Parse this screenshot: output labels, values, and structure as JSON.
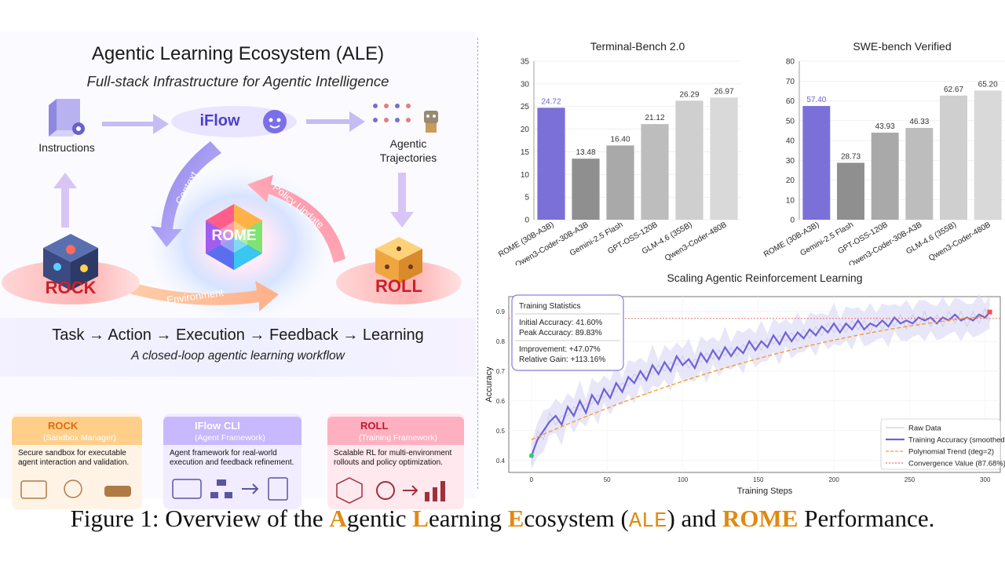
{
  "left": {
    "title": "Agentic Learning Ecosystem (ALE)",
    "subtitle": "Full-stack Infrastructure for Agentic Intelligence",
    "nodes": {
      "instructions": "Instructions",
      "iflow": "iFlow",
      "trajectories_l1": "Agentic",
      "trajectories_l2": "Trajectories",
      "rome": "ROME",
      "rock": "ROCK",
      "roll": "ROLL"
    },
    "arrows": {
      "context": "Context",
      "policy_update": "Policy Update",
      "environment": "Environment"
    },
    "loop": "Task → Action → Execution → Feedback → Learning",
    "loop_sub": "A closed-loop agentic learning workflow",
    "cards": [
      {
        "title": "ROCK",
        "role": "(Sandbox Manager)",
        "desc_l1": "Secure sandbox for executable",
        "desc_l2": "agent interaction and validation."
      },
      {
        "title": "IFlow CLI",
        "role": "(Agent Framework)",
        "desc_l1": "Agent framework for real-world",
        "desc_l2": "execution and feedback refinement."
      },
      {
        "title": "ROLL",
        "role": "(Training Framework)",
        "desc_l1": "Scalable RL for multi-environment",
        "desc_l2": "rollouts and policy optimization."
      }
    ]
  },
  "chart_data": [
    {
      "type": "bar",
      "title": "Terminal-Bench 2.0",
      "categories": [
        "ROME (30B-A3B)",
        "Qwen3-Coder-30B-A3B",
        "Gemini-2.5 Flash",
        "GPT-OSS-120B",
        "GLM-4.6 (355B)",
        "Qwen3-Coder-480B"
      ],
      "values": [
        24.72,
        13.48,
        16.4,
        21.12,
        26.29,
        26.97
      ],
      "value_labels": [
        "24.72",
        "13.48",
        "16.40",
        "21.12",
        "26.29",
        "26.97"
      ],
      "yticks": [
        "0",
        "5",
        "10",
        "15",
        "20",
        "25",
        "30",
        "35"
      ],
      "ylim": [
        0,
        35
      ],
      "colors": [
        "#7b6fd8",
        "#8f8f8f",
        "#a9a9a9",
        "#bdbdbd",
        "#cfcfcf",
        "#d9d9d9"
      ]
    },
    {
      "type": "bar",
      "title": "SWE-bench Verified",
      "categories": [
        "ROME (30B-A3B)",
        "Gemini-2.5 Flash",
        "GPT-OSS-120B",
        "Qwen3-Coder-30B-A3B",
        "GLM-4.6 (355B)",
        "Qwen3-Coder-480B"
      ],
      "values": [
        57.4,
        28.73,
        43.93,
        46.33,
        62.67,
        65.2
      ],
      "value_labels": [
        "57.40",
        "28.73",
        "43.93",
        "46.33",
        "62.67",
        "65.20"
      ],
      "yticks": [
        "0",
        "10",
        "20",
        "30",
        "40",
        "50",
        "60",
        "70",
        "80"
      ],
      "ylim": [
        0,
        80
      ],
      "colors": [
        "#7b6fd8",
        "#8f8f8f",
        "#a9a9a9",
        "#bdbdbd",
        "#cfcfcf",
        "#d9d9d9"
      ]
    },
    {
      "type": "line",
      "title": "Scaling Agentic Reinforcement Learning",
      "xlabel": "Training Steps",
      "ylabel": "Accuracy",
      "xlim": [
        -15,
        310
      ],
      "ylim": [
        0.36,
        0.95
      ],
      "xticks": [
        "0",
        "50",
        "100",
        "150",
        "200",
        "250",
        "300"
      ],
      "yticks": [
        "0.4",
        "0.5",
        "0.6",
        "0.7",
        "0.8",
        "0.9"
      ],
      "convergence": 0.8768,
      "start_point": {
        "x": 0,
        "y": 0.416
      },
      "end_point": {
        "x": 303,
        "y": 0.8983
      },
      "key_points": [
        [
          0,
          0.416
        ],
        [
          4,
          0.47
        ],
        [
          8,
          0.5
        ],
        [
          12,
          0.53
        ],
        [
          16,
          0.55
        ],
        [
          20,
          0.52
        ],
        [
          24,
          0.58
        ],
        [
          28,
          0.55
        ],
        [
          32,
          0.6
        ],
        [
          36,
          0.56
        ],
        [
          40,
          0.62
        ],
        [
          44,
          0.59
        ],
        [
          48,
          0.64
        ],
        [
          52,
          0.61
        ],
        [
          56,
          0.66
        ],
        [
          60,
          0.63
        ],
        [
          64,
          0.68
        ],
        [
          68,
          0.66
        ],
        [
          72,
          0.7
        ],
        [
          76,
          0.67
        ],
        [
          80,
          0.72
        ],
        [
          84,
          0.69
        ],
        [
          88,
          0.73
        ],
        [
          92,
          0.7
        ],
        [
          96,
          0.75
        ],
        [
          100,
          0.72
        ],
        [
          104,
          0.74
        ],
        [
          108,
          0.71
        ],
        [
          112,
          0.76
        ],
        [
          116,
          0.73
        ],
        [
          120,
          0.77
        ],
        [
          124,
          0.74
        ],
        [
          128,
          0.78
        ],
        [
          132,
          0.75
        ],
        [
          136,
          0.78
        ],
        [
          140,
          0.76
        ],
        [
          144,
          0.8
        ],
        [
          148,
          0.77
        ],
        [
          152,
          0.8
        ],
        [
          156,
          0.78
        ],
        [
          160,
          0.82
        ],
        [
          164,
          0.79
        ],
        [
          168,
          0.83
        ],
        [
          172,
          0.8
        ],
        [
          176,
          0.83
        ],
        [
          180,
          0.81
        ],
        [
          184,
          0.84
        ],
        [
          188,
          0.82
        ],
        [
          192,
          0.85
        ],
        [
          196,
          0.83
        ],
        [
          200,
          0.86
        ],
        [
          204,
          0.83
        ],
        [
          208,
          0.86
        ],
        [
          212,
          0.84
        ],
        [
          216,
          0.87
        ],
        [
          220,
          0.84
        ],
        [
          224,
          0.86
        ],
        [
          228,
          0.85
        ],
        [
          232,
          0.87
        ],
        [
          236,
          0.85
        ],
        [
          240,
          0.88
        ],
        [
          244,
          0.86
        ],
        [
          248,
          0.87
        ],
        [
          252,
          0.86
        ],
        [
          256,
          0.88
        ],
        [
          260,
          0.87
        ],
        [
          264,
          0.88
        ],
        [
          268,
          0.86
        ],
        [
          272,
          0.88
        ],
        [
          276,
          0.87
        ],
        [
          280,
          0.89
        ],
        [
          284,
          0.87
        ],
        [
          288,
          0.88
        ],
        [
          292,
          0.87
        ],
        [
          296,
          0.89
        ],
        [
          300,
          0.88
        ],
        [
          303,
          0.8983
        ]
      ],
      "trend": {
        "a": 0.47,
        "b": 0.00225,
        "c": -2.9e-06
      },
      "stats": {
        "title": "Training Statistics",
        "l1": "Initial Accuracy: 41.60%",
        "l2": "Peak Accuracy:   89.83%",
        "l3": "Improvement: +47.07%",
        "l4": "Relative Gain: +113.16%"
      },
      "legend": [
        {
          "label": "Raw Data",
          "color": "#c9c6ef"
        },
        {
          "label": "Training Accuracy (smoothed)",
          "color": "#6d63d6"
        },
        {
          "label": "Polynomial Trend (deg=2)",
          "color": "#f39c33"
        },
        {
          "label": "Convergence Value (87.68%)",
          "color": "#f07070"
        }
      ]
    }
  ],
  "caption": {
    "prefix": "Figure 1: Overview of the ",
    "a": "A",
    "gentic": "gentic ",
    "l": "L",
    "earning": "earning ",
    "e": "E",
    "cosystem": "cosystem",
    "paren_open": " (",
    "ale": "ALE",
    "paren_close": ") and ",
    "rome": "ROME",
    "suffix": " Performance."
  }
}
